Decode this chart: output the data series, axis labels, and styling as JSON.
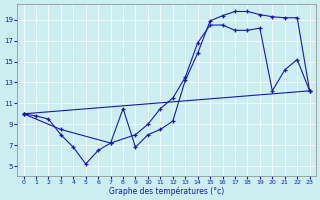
{
  "xlabel": "Graphe des températures (°c)",
  "bg_color": "#cceef0",
  "line_color": "#1a1aaa",
  "xlim": [
    -0.5,
    23.5
  ],
  "ylim": [
    4.0,
    20.5
  ],
  "xticks": [
    0,
    1,
    2,
    3,
    4,
    5,
    6,
    7,
    8,
    9,
    10,
    11,
    12,
    13,
    14,
    15,
    16,
    17,
    18,
    19,
    20,
    21,
    22,
    23
  ],
  "yticks": [
    5,
    7,
    9,
    11,
    13,
    15,
    17,
    19
  ],
  "line1_x": [
    0,
    1,
    2,
    3,
    4,
    5,
    6,
    7,
    8,
    9,
    10,
    11,
    12,
    13,
    14,
    15,
    16,
    17,
    18,
    19,
    20,
    21,
    22,
    23
  ],
  "line1_y": [
    10,
    9.8,
    9.5,
    8.0,
    6.8,
    5.2,
    6.5,
    7.2,
    10.5,
    6.8,
    8.0,
    8.5,
    9.3,
    13.2,
    15.8,
    18.9,
    19.4,
    19.8,
    19.8,
    19.5,
    19.3,
    19.2,
    19.2,
    12.2
  ],
  "line2_x": [
    0,
    3,
    7,
    9,
    10,
    11,
    12,
    13,
    14,
    15,
    16,
    17,
    18,
    19,
    20,
    21,
    22,
    23
  ],
  "line2_y": [
    10,
    8.5,
    7.2,
    8.0,
    9.0,
    10.5,
    11.5,
    13.5,
    16.8,
    18.5,
    18.5,
    18.0,
    18.0,
    18.2,
    12.2,
    14.2,
    15.2,
    12.2
  ],
  "line3_x": [
    0,
    23
  ],
  "line3_y": [
    10,
    12.2
  ]
}
